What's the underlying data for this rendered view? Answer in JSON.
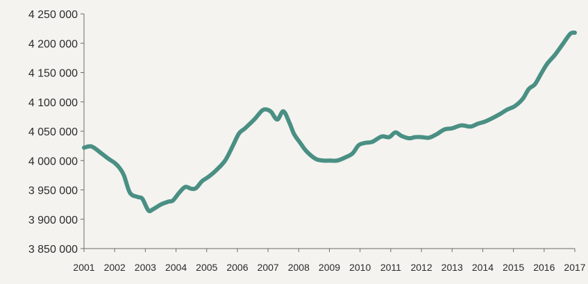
{
  "chart_data": {
    "type": "line",
    "title": "",
    "xlabel": "",
    "ylabel": "",
    "x_ticks": [
      "2001",
      "2002",
      "2003",
      "2004",
      "2005",
      "2006",
      "2007",
      "2008",
      "2009",
      "2010",
      "2011",
      "2012",
      "2013",
      "2014",
      "2015",
      "2016",
      "2017"
    ],
    "y_ticks": [
      3850000,
      3900000,
      3950000,
      4000000,
      4050000,
      4100000,
      4150000,
      4200000,
      4250000
    ],
    "y_tick_labels": [
      "3 850 000",
      "3 900 000",
      "3 950 000",
      "4 000 000",
      "4 050 000",
      "4 100 000",
      "4 150 000",
      "4 200 000",
      "4 250 000"
    ],
    "xlim": [
      2001,
      2017
    ],
    "ylim": [
      3850000,
      4250000
    ],
    "grid": false,
    "line_color": "#4a8f84",
    "series": [
      {
        "x": [
          2001.0,
          2001.25,
          2001.55,
          2001.8,
          2002.0,
          2002.15,
          2002.3,
          2002.5,
          2002.75,
          2002.9,
          2003.1,
          2003.25,
          2003.5,
          2003.75,
          2003.9,
          2004.1,
          2004.3,
          2004.5,
          2004.65,
          2004.85,
          2005.05,
          2005.3,
          2005.6,
          2005.85,
          2006.05,
          2006.25,
          2006.55,
          2006.8,
          2006.95,
          2007.1,
          2007.3,
          2007.5,
          2007.7,
          2007.85,
          2008.05,
          2008.25,
          2008.55,
          2008.8,
          2009.0,
          2009.25,
          2009.5,
          2009.75,
          2009.95,
          2010.15,
          2010.4,
          2010.7,
          2010.95,
          2011.15,
          2011.35,
          2011.6,
          2011.8,
          2012.0,
          2012.25,
          2012.5,
          2012.75,
          2013.0,
          2013.3,
          2013.6,
          2013.85,
          2014.05,
          2014.3,
          2014.55,
          2014.8,
          2015.05,
          2015.3,
          2015.5,
          2015.7,
          2015.9,
          2016.1,
          2016.35,
          2016.6,
          2016.85,
          2017.0
        ],
        "y": [
          4022000,
          4024000,
          4013000,
          4003000,
          3996000,
          3988000,
          3975000,
          3945000,
          3938000,
          3935000,
          3915000,
          3917000,
          3925000,
          3930000,
          3932000,
          3945000,
          3955000,
          3952000,
          3953000,
          3965000,
          3972000,
          3983000,
          4000000,
          4025000,
          4046000,
          4055000,
          4070000,
          4085000,
          4087000,
          4083000,
          4070000,
          4084000,
          4064000,
          4045000,
          4030000,
          4016000,
          4003000,
          4000000,
          4000000,
          4000000,
          4005000,
          4012000,
          4026000,
          4030000,
          4032000,
          4041000,
          4040000,
          4048000,
          4042000,
          4038000,
          4040000,
          4040000,
          4039000,
          4045000,
          4053000,
          4055000,
          4060000,
          4058000,
          4063000,
          4066000,
          4072000,
          4079000,
          4087000,
          4093000,
          4105000,
          4122000,
          4130000,
          4148000,
          4165000,
          4180000,
          4198000,
          4216000,
          4218000
        ]
      }
    ]
  }
}
